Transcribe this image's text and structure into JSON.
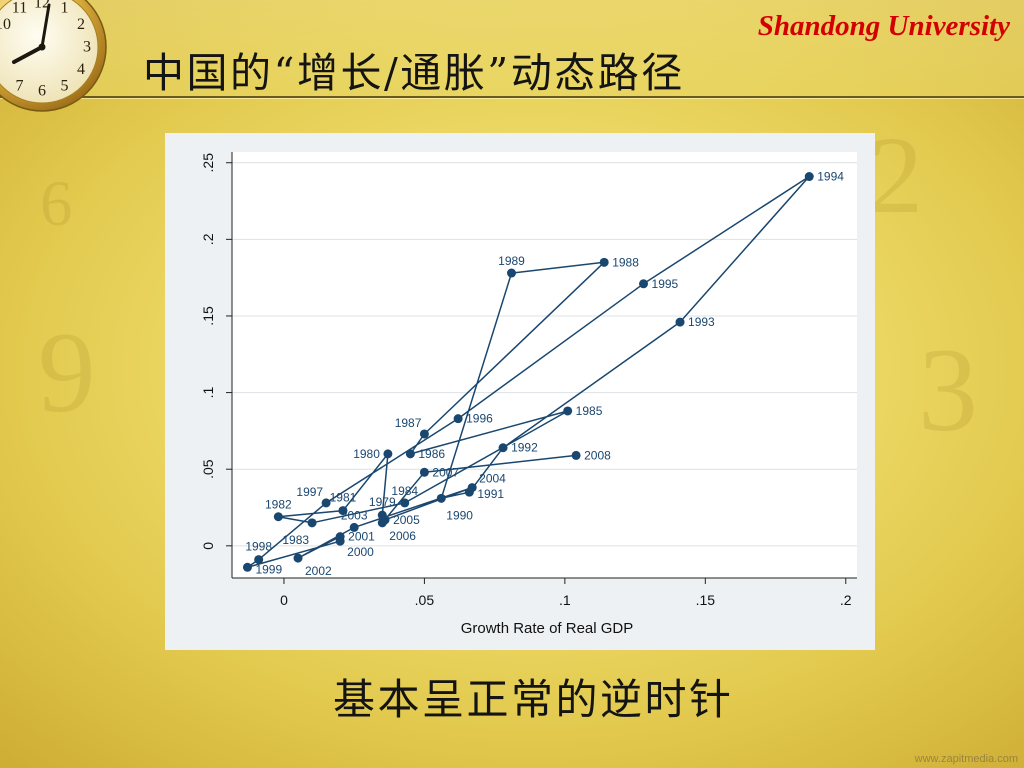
{
  "slide": {
    "brand": "Shandong University",
    "title": "中国的“增长/通胀”动态路径",
    "caption": "基本呈正常的逆时针",
    "watermark": "www.zapitmedia.com"
  },
  "clock": {
    "icon": "clock-icon",
    "numerals": [
      "10",
      "11",
      "12",
      "1",
      "2",
      "3",
      "4",
      "5",
      "6",
      "7"
    ]
  },
  "background": {
    "numerals": [
      "2",
      "3",
      "9",
      "6"
    ]
  },
  "colors": {
    "brand": "#d40000",
    "series": "#1a476f",
    "text": "#141414"
  },
  "chart_data": {
    "type": "scatter",
    "connected": true,
    "xlabel": "Growth Rate of Real GDP",
    "xlim": [
      -0.0185,
      0.204
    ],
    "ylim": [
      -0.021,
      0.257
    ],
    "x_ticks": [
      0,
      0.05,
      0.1,
      0.15,
      0.2
    ],
    "x_tick_labels": [
      "0",
      ".05",
      ".1",
      ".15",
      ".2"
    ],
    "y_ticks": [
      0,
      0.05,
      0.1,
      0.15,
      0.2,
      0.25
    ],
    "y_tick_labels": [
      "0",
      ".05",
      ".1",
      ".15",
      ".2",
      ".25"
    ],
    "grid": "horizontal",
    "points": [
      {
        "label": "1979",
        "x": 0.035,
        "y": 0.02
      },
      {
        "label": "1980",
        "x": 0.037,
        "y": 0.06
      },
      {
        "label": "1981",
        "x": 0.021,
        "y": 0.023
      },
      {
        "label": "1982",
        "x": -0.002,
        "y": 0.019
      },
      {
        "label": "1983",
        "x": 0.01,
        "y": 0.015
      },
      {
        "label": "1984",
        "x": 0.043,
        "y": 0.028
      },
      {
        "label": "1985",
        "x": 0.101,
        "y": 0.088
      },
      {
        "label": "1986",
        "x": 0.045,
        "y": 0.06
      },
      {
        "label": "1987",
        "x": 0.05,
        "y": 0.073
      },
      {
        "label": "1988",
        "x": 0.114,
        "y": 0.185
      },
      {
        "label": "1989",
        "x": 0.081,
        "y": 0.178
      },
      {
        "label": "1990",
        "x": 0.056,
        "y": 0.031
      },
      {
        "label": "1991",
        "x": 0.066,
        "y": 0.035
      },
      {
        "label": "1992",
        "x": 0.078,
        "y": 0.064
      },
      {
        "label": "1993",
        "x": 0.141,
        "y": 0.146
      },
      {
        "label": "1994",
        "x": 0.187,
        "y": 0.241
      },
      {
        "label": "1995",
        "x": 0.128,
        "y": 0.171
      },
      {
        "label": "1996",
        "x": 0.062,
        "y": 0.083
      },
      {
        "label": "1997",
        "x": 0.015,
        "y": 0.028
      },
      {
        "label": "1998",
        "x": -0.009,
        "y": -0.009
      },
      {
        "label": "1999",
        "x": -0.013,
        "y": -0.014
      },
      {
        "label": "2000",
        "x": 0.02,
        "y": 0.003
      },
      {
        "label": "2001",
        "x": 0.02,
        "y": 0.006
      },
      {
        "label": "2002",
        "x": 0.005,
        "y": -0.008
      },
      {
        "label": "2003",
        "x": 0.025,
        "y": 0.012
      },
      {
        "label": "2004",
        "x": 0.067,
        "y": 0.038
      },
      {
        "label": "2005",
        "x": 0.036,
        "y": 0.017
      },
      {
        "label": "2006",
        "x": 0.035,
        "y": 0.015
      },
      {
        "label": "2007",
        "x": 0.05,
        "y": 0.048
      },
      {
        "label": "2008",
        "x": 0.104,
        "y": 0.059
      }
    ]
  }
}
